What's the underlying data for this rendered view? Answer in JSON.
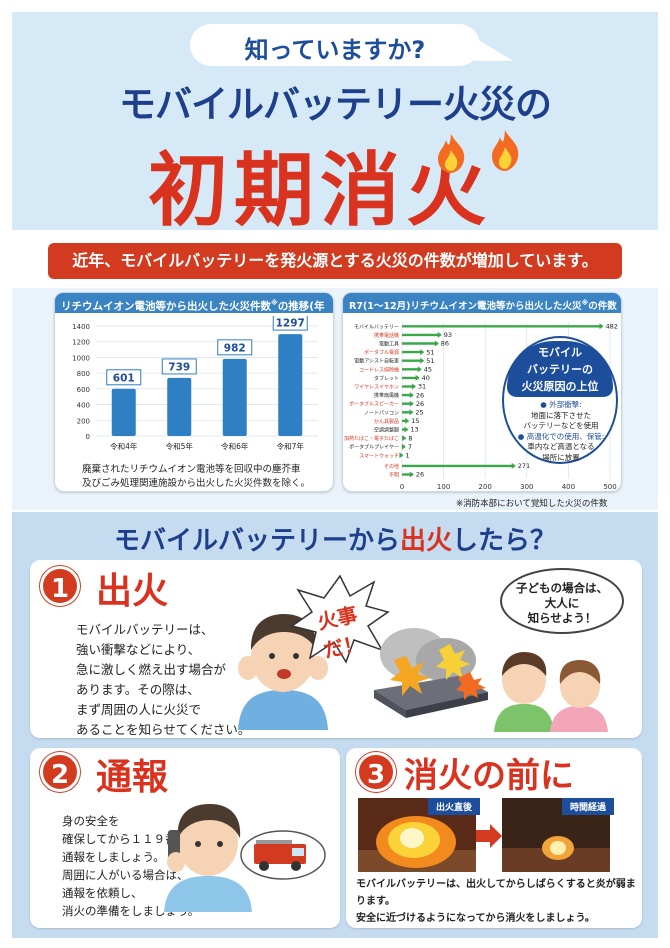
{
  "header": {
    "kicker": "知っていますか?",
    "title_line1": "モバイルバッテリー火災の",
    "title_line2": "初期消火"
  },
  "banner": "近年、モバイルバッテリーを発火源とする火災の件数が増加しています。",
  "chart_left": {
    "title": "リチウムイオン電池等から出火した火災件数",
    "title_sup": "※",
    "title_suffix": "の推移(年別)",
    "note_line1": "廃棄されたリチウムイオン電池等を回収中の塵芥車",
    "note_line2": "及びごみ処理関連施設から出火した火災件数を除く。"
  },
  "chart_right": {
    "title": "R7(1〜12月)リチウムイオン電池等から出火した火災",
    "title_sup": "※",
    "title_suffix": "の件数",
    "callout_line1": "モバイル",
    "callout_line2": "バッテリーの",
    "callout_line3": "火災原因の上位",
    "reason1_head": "● 外部衝撃:",
    "reason1_l1": "地面に落下させた",
    "reason1_l2": "バッテリーなどを使用",
    "reason2_head": "● 高温化での使用、保管:",
    "reason2_l1": "車内など高温となる",
    "reason2_l2": "場所に放置"
  },
  "footnote": "※消防本部において覚知した火災の件数",
  "chart_data": [
    {
      "type": "bar",
      "categories": [
        "令和4年",
        "令和5年",
        "令和6年",
        "令和7年"
      ],
      "values": [
        601,
        739,
        982,
        1297
      ],
      "ylim": [
        0,
        1400
      ],
      "yticks": [
        0,
        200,
        400,
        600,
        800,
        1000,
        1200,
        1400
      ],
      "bar_color": "#2f7fc4",
      "label_color": "#1d4e9c"
    },
    {
      "type": "bar",
      "orientation": "horizontal",
      "categories": [
        "モバイルバッテリー",
        "携帯電話機",
        "電動工具",
        "ポータブル電源",
        "電動アシスト自転車",
        "コードレス掃除機",
        "タブレット",
        "ワイヤレスイヤホン",
        "携帯扇風機",
        "ポータブルスピーカー",
        "ノートパソコン",
        "かん具製品",
        "空調調整服",
        "加熱たばこ・電子たばこ",
        "ポータブルプレイヤー",
        "スマートウォッチ",
        "その他",
        "不明"
      ],
      "values": [
        482,
        93,
        86,
        51,
        51,
        45,
        40,
        31,
        26,
        26,
        25,
        15,
        13,
        8,
        7,
        1,
        271,
        26
      ],
      "label_colors": [
        "#222222",
        "#d9331f",
        "#222222",
        "#d9331f",
        "#222222",
        "#d9331f",
        "#222222",
        "#d9331f",
        "#222222",
        "#d9331f",
        "#222222",
        "#d9331f",
        "#222222",
        "#d9331f",
        "#222222",
        "#d9331f",
        "#d9331f",
        "#d9331f"
      ],
      "xlim": [
        0,
        500
      ],
      "xticks": [
        0,
        100,
        200,
        300,
        400,
        500
      ],
      "bar_color": "#3aa84a"
    }
  ],
  "section_heading": {
    "pre": "モバイルバッテリーから",
    "accent": "出火",
    "post": "したら？"
  },
  "step1": {
    "num": "1",
    "title": "出火",
    "lines": [
      "モバイルバッテリーは、",
      "強い衝撃などにより、",
      "急に激しく燃え出す場合が",
      "あります。その際は、",
      "まず周囲の人に火災で",
      "あることを知らせてください。"
    ],
    "shout": "火事だ！",
    "bubble_lines": [
      "子どもの場合は、",
      "大人に",
      "知らせよう！"
    ]
  },
  "step2": {
    "num": "2",
    "title": "通報",
    "lines": [
      "身の安全を",
      "確保してから１１９番",
      "通報をしましょう。",
      "周囲に人がいる場合は、",
      "通報を依頼し、",
      "消火の準備をしましょう。"
    ]
  },
  "step3": {
    "num": "3",
    "title": "消火の前に",
    "tag_before": "出火直後",
    "tag_after": "時間経過",
    "caption_line1": "モバイルバッテリーは、出火してからしばらくすると炎が弱まります。",
    "caption_line2": "安全に近づけるようになってから消火をしましょう。"
  }
}
